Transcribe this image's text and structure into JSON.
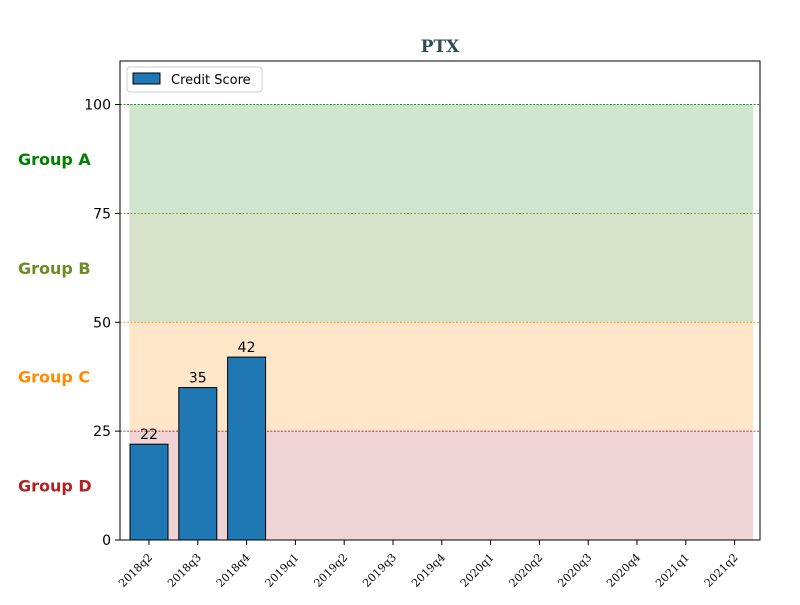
{
  "chart_data": {
    "type": "bar",
    "title": "PTX",
    "categories": [
      "2018q2",
      "2018q3",
      "2018q4",
      "2019q1",
      "2019q2",
      "2019q3",
      "2019q4",
      "2020q1",
      "2020q2",
      "2020q3",
      "2020q4",
      "2021q1",
      "2021q2"
    ],
    "series": [
      {
        "name": "Credit Score",
        "values": [
          22,
          35,
          42,
          null,
          null,
          null,
          null,
          null,
          null,
          null,
          null,
          null,
          null
        ],
        "color": "#1f77b4"
      }
    ],
    "data_labels": [
      "22",
      "35",
      "42"
    ],
    "ylim": [
      0,
      110
    ],
    "yticks": [
      0,
      25,
      50,
      75,
      100
    ],
    "legend": {
      "placement": "upper-left",
      "entries": [
        "Credit Score"
      ]
    },
    "bands": [
      {
        "label": "Group A",
        "from": 75,
        "to": 100,
        "fill": "#cde6cd",
        "label_color": "#008000",
        "line_color": "#008000"
      },
      {
        "label": "Group B",
        "from": 50,
        "to": 75,
        "fill": "#d8e2c8",
        "label_color": "#6b8e23",
        "line_color": "#6b8e23"
      },
      {
        "label": "Group C",
        "from": 25,
        "to": 50,
        "fill": "#ffe6c9",
        "label_color": "#ff8c00",
        "line_color": "#ff8c00"
      },
      {
        "label": "Group D",
        "from": 0,
        "to": 25,
        "fill": "#efd3d5",
        "label_color": "#b22222",
        "line_color": "#8b0000"
      }
    ]
  }
}
